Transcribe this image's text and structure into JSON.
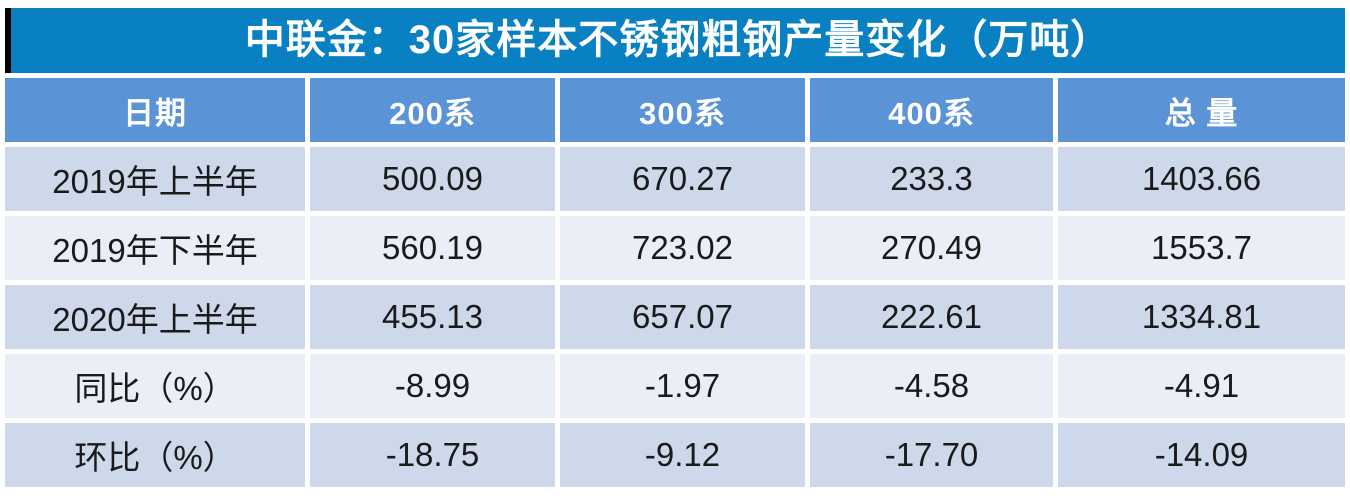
{
  "title": "中联金：30家样本不锈钢粗钢产量变化（万吨）",
  "colors": {
    "title_bg": "#0880c2",
    "header_bg": "#5b94d6",
    "row_odd_bg": "#cdd9ea",
    "row_even_bg": "#eaeff7",
    "header_text": "#ffffff",
    "body_text": "#1a1a1a",
    "accent_bar": "#000000"
  },
  "chart_data": {
    "type": "table",
    "title": "中联金：30家样本不锈钢粗钢产量变化（万吨）",
    "unit": "万吨",
    "columns": [
      "日期",
      "200系",
      "300系",
      "400系",
      "总 量"
    ],
    "rows": [
      {
        "label": "2019年上半年",
        "values": [
          "500.09",
          "670.27",
          "233.3",
          "1403.66"
        ]
      },
      {
        "label": "2019年下半年",
        "values": [
          "560.19",
          "723.02",
          "270.49",
          "1553.7"
        ]
      },
      {
        "label": "2020年上半年",
        "values": [
          "455.13",
          "657.07",
          "222.61",
          "1334.81"
        ]
      },
      {
        "label": "同比（%）",
        "values": [
          "-8.99",
          "-1.97",
          "-4.58",
          "-4.91"
        ]
      },
      {
        "label": "环比（%）",
        "values": [
          "-18.75",
          "-9.12",
          "-17.70",
          "-14.09"
        ]
      }
    ]
  }
}
